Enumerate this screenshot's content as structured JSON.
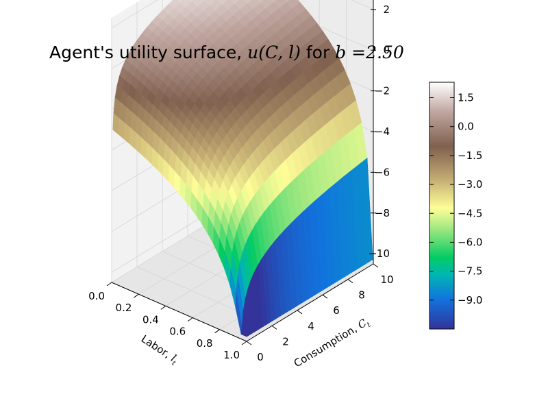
{
  "chart_data": {
    "type": "surface",
    "title": "Agent's utility surface, ",
    "title_math": "u(C, l)",
    "title_mid": " for ",
    "title_param": "b =2.50",
    "xlabel": "Labor, ",
    "xlabel_math": "l",
    "xlabel_sub": "t",
    "ylabel": "Consumption, ",
    "ylabel_math": "C",
    "ylabel_sub": "t",
    "x_ticks": [
      "0.0",
      "0.2",
      "0.4",
      "0.6",
      "0.8",
      "1.0"
    ],
    "y_ticks": [
      "0",
      "2",
      "4",
      "6",
      "8",
      "10"
    ],
    "z_ticks": [
      "2",
      "0",
      "−2",
      "−4",
      "−6",
      "−8",
      "−10"
    ],
    "xlim": [
      0,
      1
    ],
    "ylim": [
      0,
      10
    ],
    "zlim": [
      -10.5,
      2.5
    ],
    "b": 2.5,
    "function": "u = ln(C) + b * ln(1 - l)",
    "colormap": "terrain",
    "colorbar_ticks": [
      "1.5",
      "0.0",
      "−1.5",
      "−3.0",
      "−4.5",
      "−6.0",
      "−7.5",
      "−9.0"
    ],
    "colorbar_tick_values": [
      1.5,
      0.0,
      -1.5,
      -3.0,
      -4.5,
      -6.0,
      -7.5,
      -9.0
    ],
    "colorbar_range": [
      -10.5,
      2.3
    ],
    "grid": true
  }
}
